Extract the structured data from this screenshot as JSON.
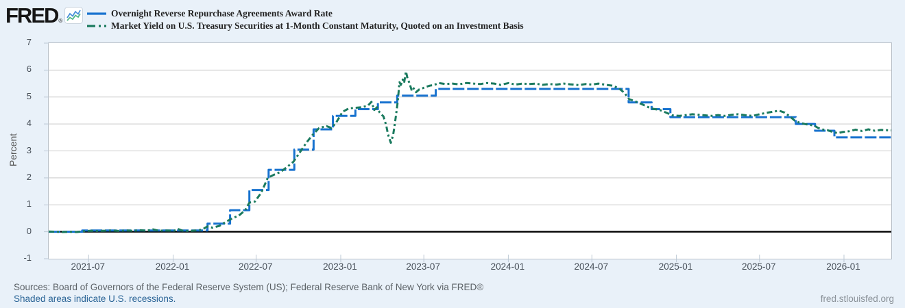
{
  "page": {
    "background": "#e9f1f9"
  },
  "logo": {
    "text": "FRED",
    "registered": "®",
    "icon_blue": "#4a90d9",
    "icon_green": "#52b788"
  },
  "legend": [
    {
      "label": "Overnight Reverse Repurchase Agreements Award Rate",
      "color": "#1772cf",
      "dash": "none"
    },
    {
      "label": "Market Yield on U.S. Treasury Securities at 1-Month Constant Maturity, Quoted on an Investment Basis",
      "color": "#1a7a5e",
      "dash": "12 5 3 5"
    }
  ],
  "footer": {
    "sources": "Sources: Board of Governors of the Federal Reserve System (US); Federal Reserve Bank of New York via FRED®",
    "recessions_note": "Shaded areas indicate U.S. recessions.",
    "site": "fred.stlouisfed.org"
  },
  "chart_data": {
    "type": "line",
    "title": "",
    "xlabel": "",
    "ylabel": "Percent",
    "ylim": [
      -1,
      7
    ],
    "grid": "horizontal",
    "legend_position": "top-left",
    "zero_line": true,
    "colors": {
      "grid": "#c9c9c9",
      "zero_line": "#000000",
      "tick": "#bcc8d4",
      "frame": "#b9c0c8"
    },
    "x_domain": [
      "2021-04-05",
      "2026-04-14"
    ],
    "y_ticks": [
      7,
      6,
      5,
      4,
      3,
      2,
      1,
      0,
      -1
    ],
    "y_gridlines": [
      6,
      5,
      4,
      3,
      2,
      1
    ],
    "x_ticks": [
      {
        "date": "2021-07-01",
        "label": "2021-07"
      },
      {
        "date": "2022-01-01",
        "label": "2022-01"
      },
      {
        "date": "2022-07-01",
        "label": "2022-07"
      },
      {
        "date": "2023-01-01",
        "label": "2023-01"
      },
      {
        "date": "2023-07-01",
        "label": "2023-07"
      },
      {
        "date": "2024-01-01",
        "label": "2024-01"
      },
      {
        "date": "2024-07-01",
        "label": "2024-07"
      },
      {
        "date": "2025-01-01",
        "label": "2025-01"
      },
      {
        "date": "2025-07-01",
        "label": "2025-07"
      },
      {
        "date": "2026-01-01",
        "label": "2026-01"
      }
    ],
    "series": [
      {
        "name": "Overnight Reverse Repurchase Agreements Award Rate",
        "color": "#1772cf",
        "width": 3,
        "dash": "17 4",
        "step": true,
        "points": [
          [
            "2021-04-05",
            0.0
          ],
          [
            "2021-06-17",
            0.05
          ],
          [
            "2022-03-17",
            0.3
          ],
          [
            "2022-05-05",
            0.8
          ],
          [
            "2022-06-16",
            1.55
          ],
          [
            "2022-07-28",
            2.3
          ],
          [
            "2022-09-22",
            3.05
          ],
          [
            "2022-11-03",
            3.8
          ],
          [
            "2022-12-15",
            4.3
          ],
          [
            "2023-02-02",
            4.55
          ],
          [
            "2023-03-23",
            4.8
          ],
          [
            "2023-05-04",
            5.05
          ],
          [
            "2023-07-27",
            5.3
          ],
          [
            "2024-09-19",
            4.8
          ],
          [
            "2024-11-08",
            4.55
          ],
          [
            "2024-12-19",
            4.25
          ],
          [
            "2025-09-18",
            4.0
          ],
          [
            "2025-10-30",
            3.75
          ],
          [
            "2025-12-11",
            3.5
          ],
          [
            "2026-04-14",
            3.5
          ]
        ]
      },
      {
        "name": "Market Yield on U.S. Treasury Securities at 1-Month Constant Maturity, Quoted on an Investment Basis",
        "color": "#1a7a5e",
        "width": 3,
        "dash": "8 4 3 4",
        "step": false,
        "points": [
          [
            "2021-04-05",
            0.01
          ],
          [
            "2021-04-20",
            0.0
          ],
          [
            "2021-05-05",
            -0.01
          ],
          [
            "2021-05-20",
            0.0
          ],
          [
            "2021-06-05",
            -0.01
          ],
          [
            "2021-06-20",
            0.02
          ],
          [
            "2021-07-05",
            0.04
          ],
          [
            "2021-07-20",
            0.03
          ],
          [
            "2021-08-05",
            0.04
          ],
          [
            "2021-08-20",
            0.05
          ],
          [
            "2021-09-05",
            0.03
          ],
          [
            "2021-09-20",
            0.05
          ],
          [
            "2021-10-05",
            0.04
          ],
          [
            "2021-10-20",
            0.06
          ],
          [
            "2021-11-05",
            0.04
          ],
          [
            "2021-11-18",
            0.09
          ],
          [
            "2021-12-01",
            0.04
          ],
          [
            "2021-12-15",
            0.05
          ],
          [
            "2022-01-03",
            0.04
          ],
          [
            "2022-01-12",
            0.1
          ],
          [
            "2022-01-22",
            0.04
          ],
          [
            "2022-02-05",
            0.03
          ],
          [
            "2022-02-20",
            0.05
          ],
          [
            "2022-03-05",
            0.08
          ],
          [
            "2022-03-17",
            0.2
          ],
          [
            "2022-03-28",
            0.15
          ],
          [
            "2022-04-12",
            0.22
          ],
          [
            "2022-04-26",
            0.37
          ],
          [
            "2022-05-10",
            0.5
          ],
          [
            "2022-05-24",
            0.6
          ],
          [
            "2022-06-07",
            0.8
          ],
          [
            "2022-06-16",
            1.08
          ],
          [
            "2022-06-28",
            1.12
          ],
          [
            "2022-07-12",
            1.45
          ],
          [
            "2022-07-26",
            2.0
          ],
          [
            "2022-08-09",
            2.12
          ],
          [
            "2022-08-23",
            2.22
          ],
          [
            "2022-09-06",
            2.4
          ],
          [
            "2022-09-20",
            2.6
          ],
          [
            "2022-10-04",
            2.95
          ],
          [
            "2022-10-18",
            3.3
          ],
          [
            "2022-11-01",
            3.6
          ],
          [
            "2022-11-15",
            3.85
          ],
          [
            "2022-12-01",
            3.92
          ],
          [
            "2022-12-12",
            3.85
          ],
          [
            "2022-12-22",
            4.05
          ],
          [
            "2023-01-05",
            4.45
          ],
          [
            "2023-01-19",
            4.58
          ],
          [
            "2023-02-02",
            4.6
          ],
          [
            "2023-02-16",
            4.62
          ],
          [
            "2023-03-01",
            4.68
          ],
          [
            "2023-03-09",
            4.82
          ],
          [
            "2023-03-15",
            4.52
          ],
          [
            "2023-03-21",
            4.62
          ],
          [
            "2023-03-27",
            4.42
          ],
          [
            "2023-04-04",
            4.28
          ],
          [
            "2023-04-10",
            3.95
          ],
          [
            "2023-04-14",
            3.62
          ],
          [
            "2023-04-20",
            3.3
          ],
          [
            "2023-04-25",
            3.58
          ],
          [
            "2023-04-28",
            3.9
          ],
          [
            "2023-05-02",
            4.4
          ],
          [
            "2023-05-05",
            4.8
          ],
          [
            "2023-05-09",
            5.55
          ],
          [
            "2023-05-12",
            5.45
          ],
          [
            "2023-05-16",
            5.65
          ],
          [
            "2023-05-19",
            5.52
          ],
          [
            "2023-05-23",
            5.95
          ],
          [
            "2023-05-26",
            5.72
          ],
          [
            "2023-05-31",
            5.5
          ],
          [
            "2023-06-05",
            5.22
          ],
          [
            "2023-06-09",
            5.32
          ],
          [
            "2023-06-14",
            5.18
          ],
          [
            "2023-06-21",
            5.28
          ],
          [
            "2023-06-28",
            5.32
          ],
          [
            "2023-07-06",
            5.38
          ],
          [
            "2023-07-14",
            5.42
          ],
          [
            "2023-07-24",
            5.45
          ],
          [
            "2023-08-03",
            5.52
          ],
          [
            "2023-08-17",
            5.48
          ],
          [
            "2023-09-01",
            5.5
          ],
          [
            "2023-09-15",
            5.47
          ],
          [
            "2023-10-02",
            5.52
          ],
          [
            "2023-10-16",
            5.5
          ],
          [
            "2023-11-01",
            5.48
          ],
          [
            "2023-11-15",
            5.52
          ],
          [
            "2023-12-01",
            5.5
          ],
          [
            "2023-12-15",
            5.45
          ],
          [
            "2024-01-02",
            5.52
          ],
          [
            "2024-01-16",
            5.46
          ],
          [
            "2024-02-01",
            5.5
          ],
          [
            "2024-02-15",
            5.48
          ],
          [
            "2024-03-01",
            5.5
          ],
          [
            "2024-03-15",
            5.45
          ],
          [
            "2024-04-01",
            5.48
          ],
          [
            "2024-04-15",
            5.46
          ],
          [
            "2024-05-01",
            5.5
          ],
          [
            "2024-05-15",
            5.47
          ],
          [
            "2024-06-03",
            5.44
          ],
          [
            "2024-06-17",
            5.48
          ],
          [
            "2024-07-01",
            5.46
          ],
          [
            "2024-07-15",
            5.5
          ],
          [
            "2024-08-01",
            5.45
          ],
          [
            "2024-08-15",
            5.42
          ],
          [
            "2024-08-29",
            5.32
          ],
          [
            "2024-09-10",
            5.15
          ],
          [
            "2024-09-20",
            4.92
          ],
          [
            "2024-10-02",
            4.85
          ],
          [
            "2024-10-16",
            4.75
          ],
          [
            "2024-11-01",
            4.62
          ],
          [
            "2024-11-12",
            4.56
          ],
          [
            "2024-11-26",
            4.52
          ],
          [
            "2024-12-10",
            4.42
          ],
          [
            "2024-12-23",
            4.32
          ],
          [
            "2025-01-08",
            4.3
          ],
          [
            "2025-01-22",
            4.33
          ],
          [
            "2025-02-05",
            4.36
          ],
          [
            "2025-02-19",
            4.34
          ],
          [
            "2025-03-05",
            4.32
          ],
          [
            "2025-03-19",
            4.3
          ],
          [
            "2025-04-02",
            4.33
          ],
          [
            "2025-04-16",
            4.3
          ],
          [
            "2025-05-01",
            4.34
          ],
          [
            "2025-05-15",
            4.36
          ],
          [
            "2025-06-02",
            4.32
          ],
          [
            "2025-06-16",
            4.3
          ],
          [
            "2025-07-01",
            4.36
          ],
          [
            "2025-07-15",
            4.41
          ],
          [
            "2025-08-01",
            4.46
          ],
          [
            "2025-08-13",
            4.49
          ],
          [
            "2025-08-25",
            4.42
          ],
          [
            "2025-09-05",
            4.28
          ],
          [
            "2025-09-16",
            4.12
          ],
          [
            "2025-09-26",
            4.05
          ],
          [
            "2025-10-07",
            4.0
          ],
          [
            "2025-10-17",
            3.97
          ],
          [
            "2025-10-28",
            3.94
          ],
          [
            "2025-11-06",
            3.85
          ],
          [
            "2025-11-17",
            3.79
          ],
          [
            "2025-11-26",
            3.77
          ],
          [
            "2025-12-08",
            3.7
          ],
          [
            "2025-12-18",
            3.66
          ],
          [
            "2025-12-29",
            3.7
          ],
          [
            "2026-01-12",
            3.73
          ],
          [
            "2026-01-26",
            3.79
          ],
          [
            "2026-02-09",
            3.74
          ],
          [
            "2026-02-23",
            3.8
          ],
          [
            "2026-03-09",
            3.75
          ],
          [
            "2026-03-23",
            3.78
          ],
          [
            "2026-04-14",
            3.76
          ]
        ]
      }
    ]
  }
}
